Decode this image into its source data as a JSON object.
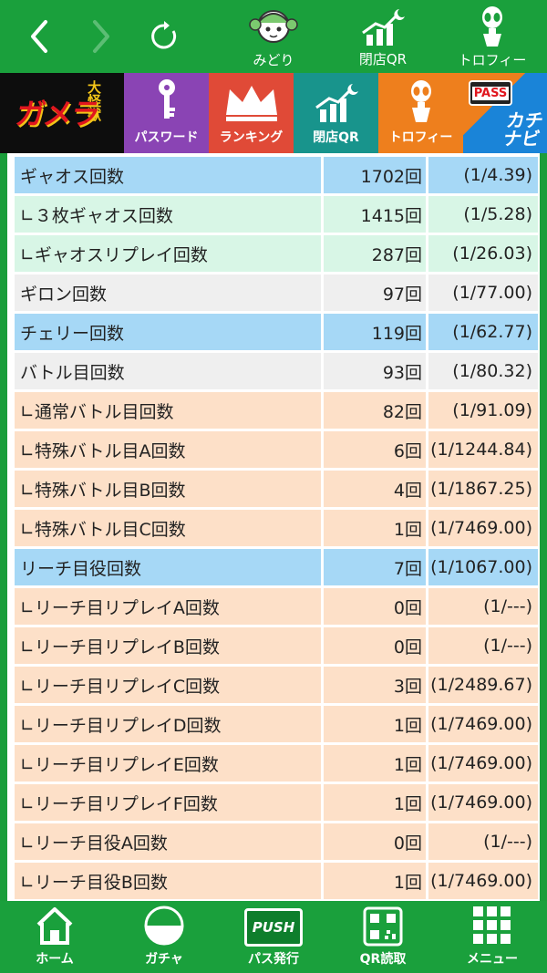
{
  "topbar": {
    "midori_label": "みどり",
    "close_qr_label": "閉店QR",
    "trophy_label": "トロフィー"
  },
  "banner": {
    "logo_text": "ガメラ",
    "logo_sub": "大怪獣",
    "password_label": "パスワード",
    "ranking_label": "ランキング",
    "close_qr_label": "閉店QR",
    "trophy_label": "トロフィー",
    "pass_badge": "PASS",
    "kachinavi": "カチナビ"
  },
  "stats": [
    {
      "name": "ギャオス回数",
      "count": "1702回",
      "prob": "(1/4.39)",
      "style": "blue"
    },
    {
      "name": "∟３枚ギャオス回数",
      "count": "1415回",
      "prob": "(1/5.28)",
      "style": "mint"
    },
    {
      "name": "∟ギャオスリプレイ回数",
      "count": "287回",
      "prob": "(1/26.03)",
      "style": "mint"
    },
    {
      "name": "ギロン回数",
      "count": "97回",
      "prob": "(1/77.00)",
      "style": "gray"
    },
    {
      "name": "チェリー回数",
      "count": "119回",
      "prob": "(1/62.77)",
      "style": "blue"
    },
    {
      "name": "バトル目回数",
      "count": "93回",
      "prob": "(1/80.32)",
      "style": "gray"
    },
    {
      "name": "∟通常バトル目回数",
      "count": "82回",
      "prob": "(1/91.09)",
      "style": "peach"
    },
    {
      "name": "∟特殊バトル目A回数",
      "count": "6回",
      "prob": "(1/1244.84)",
      "style": "peach"
    },
    {
      "name": "∟特殊バトル目B回数",
      "count": "4回",
      "prob": "(1/1867.25)",
      "style": "peach"
    },
    {
      "name": "∟特殊バトル目C回数",
      "count": "1回",
      "prob": "(1/7469.00)",
      "style": "peach"
    },
    {
      "name": "リーチ目役回数",
      "count": "7回",
      "prob": "(1/1067.00)",
      "style": "blue"
    },
    {
      "name": "∟リーチ目リプレイA回数",
      "count": "0回",
      "prob": "(1/---)",
      "style": "peach"
    },
    {
      "name": "∟リーチ目リプレイB回数",
      "count": "0回",
      "prob": "(1/---)",
      "style": "peach"
    },
    {
      "name": "∟リーチ目リプレイC回数",
      "count": "3回",
      "prob": "(1/2489.67)",
      "style": "peach"
    },
    {
      "name": "∟リーチ目リプレイD回数",
      "count": "1回",
      "prob": "(1/7469.00)",
      "style": "peach"
    },
    {
      "name": "∟リーチ目リプレイE回数",
      "count": "1回",
      "prob": "(1/7469.00)",
      "style": "peach"
    },
    {
      "name": "∟リーチ目リプレイF回数",
      "count": "1回",
      "prob": "(1/7469.00)",
      "style": "peach"
    },
    {
      "name": "∟リーチ目役A回数",
      "count": "0回",
      "prob": "(1/---)",
      "style": "peach"
    },
    {
      "name": "∟リーチ目役B回数",
      "count": "1回",
      "prob": "(1/7469.00)",
      "style": "peach"
    }
  ],
  "bottombar": {
    "home_label": "ホーム",
    "gacha_label": "ガチャ",
    "pass_issue_label": "パス発行",
    "push_badge": "PUSH",
    "qr_read_label": "QR読取",
    "menu_label": "メニュー"
  },
  "colors": {
    "green": "#1aa03c",
    "blue_row": "#a6d8f6",
    "mint_row": "#d8f6e6",
    "gray_row": "#efefef",
    "peach_row": "#fde0c8"
  }
}
